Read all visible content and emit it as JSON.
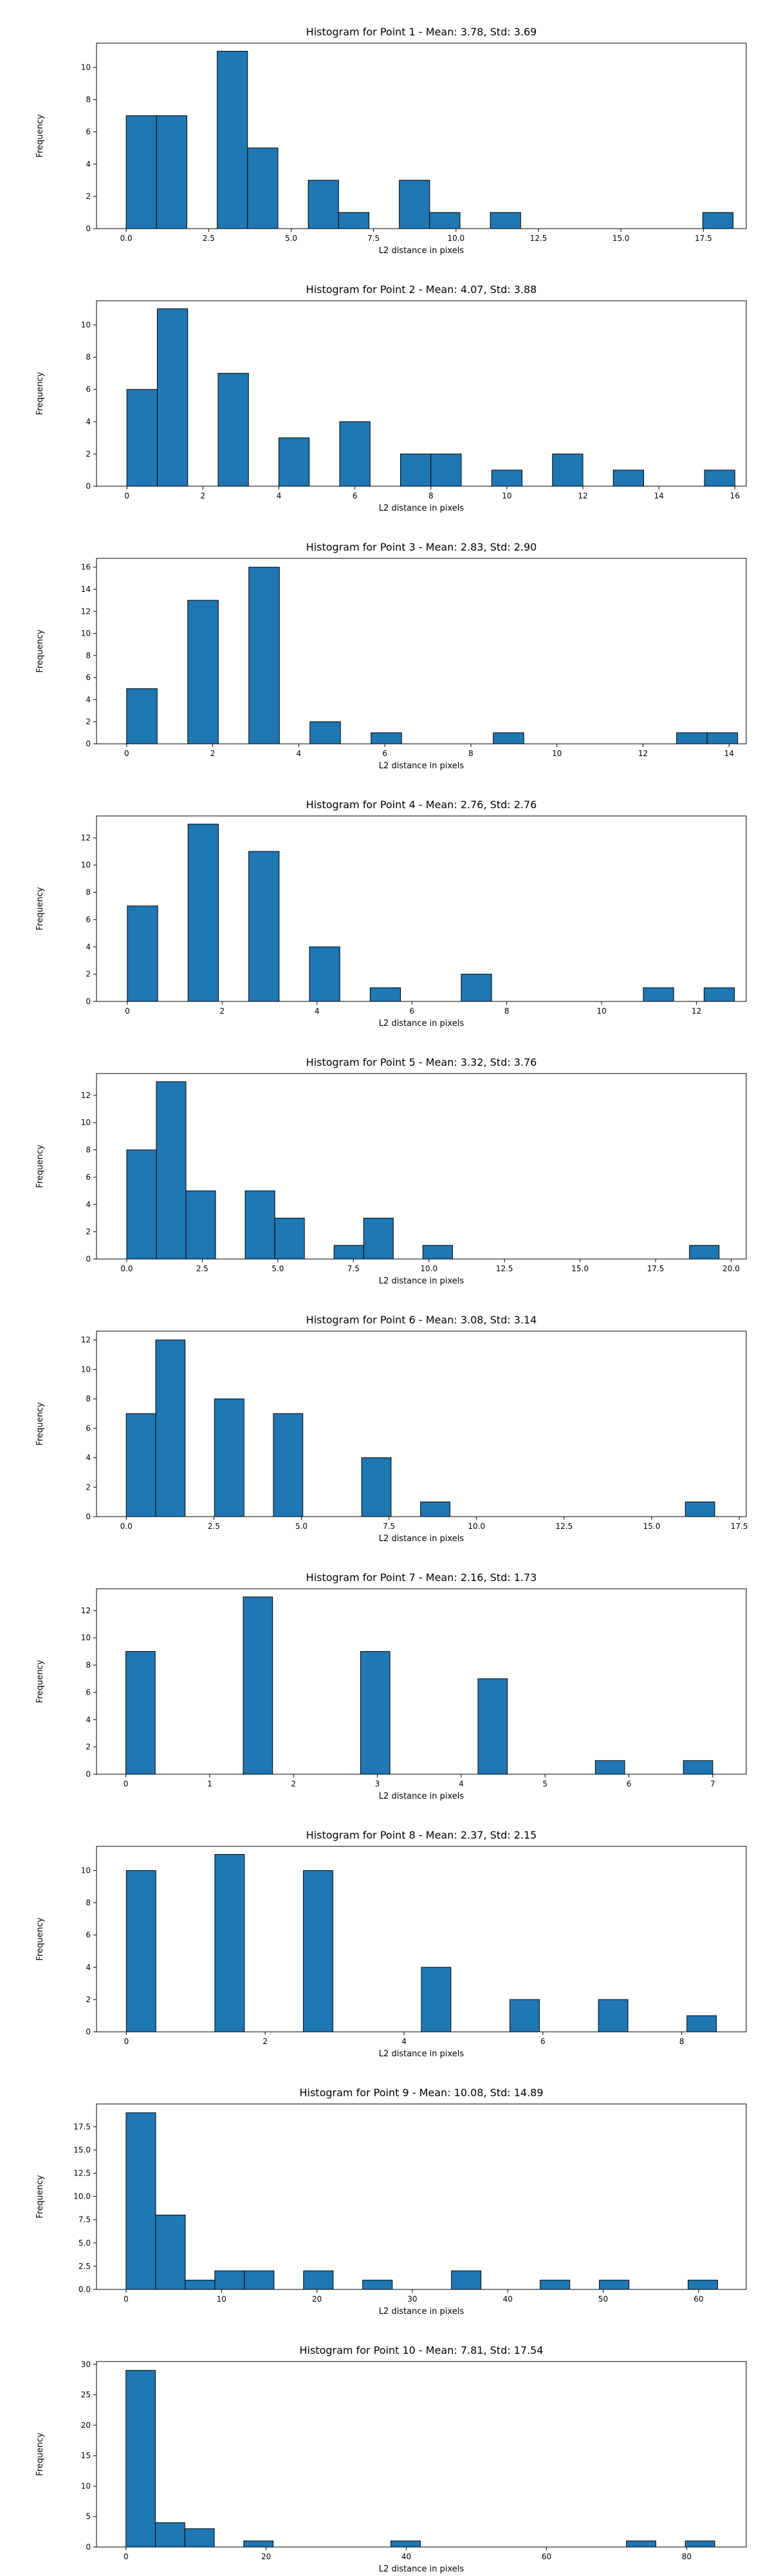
{
  "chart_data": [
    {
      "type": "bar",
      "title": "Histogram for Point 1 - Mean: 3.78, Std: 3.69",
      "xlabel": "L2 distance in pixels",
      "ylabel": "Frequency",
      "xlim": [
        -0.9,
        18.8
      ],
      "ylim": [
        0,
        11.5
      ],
      "bar_color": "#1f77b4",
      "edge_color": "#000000",
      "xticks": [
        0,
        2.5,
        5,
        7.5,
        10,
        12.5,
        15,
        17.5
      ],
      "xtick_labels": [
        "0.0",
        "2.5",
        "5.0",
        "7.5",
        "10.0",
        "12.5",
        "15.0",
        "17.5"
      ],
      "yticks": [
        0,
        2,
        4,
        6,
        8,
        10
      ],
      "bins": [
        {
          "x0": 0.0,
          "x1": 0.92,
          "count": 7
        },
        {
          "x0": 0.92,
          "x1": 1.84,
          "count": 7
        },
        {
          "x0": 2.76,
          "x1": 3.68,
          "count": 11
        },
        {
          "x0": 3.68,
          "x1": 4.6,
          "count": 5
        },
        {
          "x0": 5.52,
          "x1": 6.44,
          "count": 3
        },
        {
          "x0": 6.44,
          "x1": 7.36,
          "count": 1
        },
        {
          "x0": 8.28,
          "x1": 9.2,
          "count": 3
        },
        {
          "x0": 9.2,
          "x1": 10.12,
          "count": 1
        },
        {
          "x0": 11.04,
          "x1": 11.96,
          "count": 1
        },
        {
          "x0": 17.48,
          "x1": 18.4,
          "count": 1
        }
      ]
    },
    {
      "type": "bar",
      "title": "Histogram for Point 2 - Mean: 4.07, Std: 3.88",
      "xlabel": "L2 distance in pixels",
      "ylabel": "Frequency",
      "xlim": [
        -0.8,
        16.3
      ],
      "ylim": [
        0,
        11.5
      ],
      "bar_color": "#1f77b4",
      "edge_color": "#000000",
      "xticks": [
        0,
        2,
        4,
        6,
        8,
        10,
        12,
        14,
        16
      ],
      "xtick_labels": [
        "0",
        "2",
        "4",
        "6",
        "8",
        "10",
        "12",
        "14",
        "16"
      ],
      "yticks": [
        0,
        2,
        4,
        6,
        8,
        10
      ],
      "bins": [
        {
          "x0": 0.0,
          "x1": 0.8,
          "count": 6
        },
        {
          "x0": 0.8,
          "x1": 1.6,
          "count": 11
        },
        {
          "x0": 2.4,
          "x1": 3.2,
          "count": 7
        },
        {
          "x0": 4.0,
          "x1": 4.8,
          "count": 3
        },
        {
          "x0": 5.6,
          "x1": 6.4,
          "count": 4
        },
        {
          "x0": 7.2,
          "x1": 8.0,
          "count": 2
        },
        {
          "x0": 8.0,
          "x1": 8.8,
          "count": 2
        },
        {
          "x0": 9.6,
          "x1": 10.4,
          "count": 1
        },
        {
          "x0": 11.2,
          "x1": 12.0,
          "count": 2
        },
        {
          "x0": 12.8,
          "x1": 13.6,
          "count": 1
        },
        {
          "x0": 15.2,
          "x1": 16.0,
          "count": 1
        }
      ]
    },
    {
      "type": "bar",
      "title": "Histogram for Point 3 - Mean: 2.83, Std: 2.90",
      "xlabel": "L2 distance in pixels",
      "ylabel": "Frequency",
      "xlim": [
        -0.7,
        14.4
      ],
      "ylim": [
        0,
        16.8
      ],
      "bar_color": "#1f77b4",
      "edge_color": "#000000",
      "xticks": [
        0,
        2,
        4,
        6,
        8,
        10,
        12,
        14
      ],
      "xtick_labels": [
        "0",
        "2",
        "4",
        "6",
        "8",
        "10",
        "12",
        "14"
      ],
      "yticks": [
        0,
        2,
        4,
        6,
        8,
        10,
        12,
        14,
        16
      ],
      "bins": [
        {
          "x0": 0.0,
          "x1": 0.71,
          "count": 5
        },
        {
          "x0": 1.42,
          "x1": 2.13,
          "count": 13
        },
        {
          "x0": 2.84,
          "x1": 3.55,
          "count": 16
        },
        {
          "x0": 4.26,
          "x1": 4.97,
          "count": 2
        },
        {
          "x0": 5.68,
          "x1": 6.39,
          "count": 1
        },
        {
          "x0": 8.52,
          "x1": 9.23,
          "count": 1
        },
        {
          "x0": 12.78,
          "x1": 13.49,
          "count": 1
        },
        {
          "x0": 13.49,
          "x1": 14.2,
          "count": 1
        }
      ]
    },
    {
      "type": "bar",
      "title": "Histogram for Point 4 - Mean: 2.76, Std: 2.76",
      "xlabel": "L2 distance in pixels",
      "ylabel": "Frequency",
      "xlim": [
        -0.65,
        13.05
      ],
      "ylim": [
        0,
        13.6
      ],
      "bar_color": "#1f77b4",
      "edge_color": "#000000",
      "xticks": [
        0,
        2,
        4,
        6,
        8,
        10,
        12
      ],
      "xtick_labels": [
        "0",
        "2",
        "4",
        "6",
        "8",
        "10",
        "12"
      ],
      "yticks": [
        0,
        2,
        4,
        6,
        8,
        10,
        12
      ],
      "bins": [
        {
          "x0": 0.0,
          "x1": 0.64,
          "count": 7
        },
        {
          "x0": 1.28,
          "x1": 1.92,
          "count": 13
        },
        {
          "x0": 2.56,
          "x1": 3.2,
          "count": 11
        },
        {
          "x0": 3.84,
          "x1": 4.48,
          "count": 4
        },
        {
          "x0": 5.12,
          "x1": 5.76,
          "count": 1
        },
        {
          "x0": 7.04,
          "x1": 7.68,
          "count": 2
        },
        {
          "x0": 10.88,
          "x1": 11.52,
          "count": 1
        },
        {
          "x0": 12.16,
          "x1": 12.8,
          "count": 1
        }
      ]
    },
    {
      "type": "bar",
      "title": "Histogram for Point 5 - Mean: 3.32, Std: 3.76",
      "xlabel": "L2 distance in pixels",
      "ylabel": "Frequency",
      "xlim": [
        -1.0,
        20.5
      ],
      "ylim": [
        0,
        13.6
      ],
      "bar_color": "#1f77b4",
      "edge_color": "#000000",
      "xticks": [
        0,
        2.5,
        5,
        7.5,
        10,
        12.5,
        15,
        17.5,
        20
      ],
      "xtick_labels": [
        "0.0",
        "2.5",
        "5.0",
        "7.5",
        "10.0",
        "12.5",
        "15.0",
        "17.5",
        "20.0"
      ],
      "yticks": [
        0,
        2,
        4,
        6,
        8,
        10,
        12
      ],
      "bins": [
        {
          "x0": 0.0,
          "x1": 0.98,
          "count": 8
        },
        {
          "x0": 0.98,
          "x1": 1.96,
          "count": 13
        },
        {
          "x0": 1.96,
          "x1": 2.94,
          "count": 5
        },
        {
          "x0": 3.92,
          "x1": 4.9,
          "count": 5
        },
        {
          "x0": 4.9,
          "x1": 5.88,
          "count": 3
        },
        {
          "x0": 6.86,
          "x1": 7.84,
          "count": 1
        },
        {
          "x0": 7.84,
          "x1": 8.82,
          "count": 3
        },
        {
          "x0": 9.8,
          "x1": 10.78,
          "count": 1
        },
        {
          "x0": 18.62,
          "x1": 19.6,
          "count": 1
        }
      ]
    },
    {
      "type": "bar",
      "title": "Histogram for Point 6 - Mean: 3.08, Std: 3.14",
      "xlabel": "L2 distance in pixels",
      "ylabel": "Frequency",
      "xlim": [
        -0.85,
        17.7
      ],
      "ylim": [
        0,
        12.6
      ],
      "bar_color": "#1f77b4",
      "edge_color": "#000000",
      "xticks": [
        0,
        2.5,
        5,
        7.5,
        10,
        12.5,
        15,
        17.5
      ],
      "xtick_labels": [
        "0.0",
        "2.5",
        "5.0",
        "7.5",
        "10.0",
        "12.5",
        "15.0",
        "17.5"
      ],
      "yticks": [
        0,
        2,
        4,
        6,
        8,
        10,
        12
      ],
      "bins": [
        {
          "x0": 0.0,
          "x1": 0.84,
          "count": 7
        },
        {
          "x0": 0.84,
          "x1": 1.68,
          "count": 12
        },
        {
          "x0": 2.52,
          "x1": 3.36,
          "count": 8
        },
        {
          "x0": 4.2,
          "x1": 5.04,
          "count": 7
        },
        {
          "x0": 6.72,
          "x1": 7.56,
          "count": 4
        },
        {
          "x0": 8.4,
          "x1": 9.24,
          "count": 1
        },
        {
          "x0": 15.96,
          "x1": 16.8,
          "count": 1
        }
      ]
    },
    {
      "type": "bar",
      "title": "Histogram for Point 7 - Mean: 2.16, Std: 1.73",
      "xlabel": "L2 distance in pixels",
      "ylabel": "Frequency",
      "xlim": [
        -0.35,
        7.4
      ],
      "ylim": [
        0,
        13.6
      ],
      "bar_color": "#1f77b4",
      "edge_color": "#000000",
      "xticks": [
        0,
        1,
        2,
        3,
        4,
        5,
        6,
        7
      ],
      "xtick_labels": [
        "0",
        "1",
        "2",
        "3",
        "4",
        "5",
        "6",
        "7"
      ],
      "yticks": [
        0,
        2,
        4,
        6,
        8,
        10,
        12
      ],
      "bins": [
        {
          "x0": 0.0,
          "x1": 0.35,
          "count": 9
        },
        {
          "x0": 1.4,
          "x1": 1.75,
          "count": 13
        },
        {
          "x0": 2.8,
          "x1": 3.15,
          "count": 9
        },
        {
          "x0": 4.2,
          "x1": 4.55,
          "count": 7
        },
        {
          "x0": 5.6,
          "x1": 5.95,
          "count": 1
        },
        {
          "x0": 6.65,
          "x1": 7.0,
          "count": 1
        }
      ]
    },
    {
      "type": "bar",
      "title": "Histogram for Point 8 - Mean: 2.37, Std: 2.15",
      "xlabel": "L2 distance in pixels",
      "ylabel": "Frequency",
      "xlim": [
        -0.43,
        8.93
      ],
      "ylim": [
        0,
        11.5
      ],
      "bar_color": "#1f77b4",
      "edge_color": "#000000",
      "xticks": [
        0,
        2,
        4,
        6,
        8
      ],
      "xtick_labels": [
        "0",
        "2",
        "4",
        "6",
        "8"
      ],
      "yticks": [
        0,
        2,
        4,
        6,
        8,
        10
      ],
      "bins": [
        {
          "x0": 0.0,
          "x1": 0.425,
          "count": 10
        },
        {
          "x0": 1.275,
          "x1": 1.7,
          "count": 11
        },
        {
          "x0": 2.55,
          "x1": 2.975,
          "count": 10
        },
        {
          "x0": 4.25,
          "x1": 4.675,
          "count": 4
        },
        {
          "x0": 5.525,
          "x1": 5.95,
          "count": 2
        },
        {
          "x0": 6.8,
          "x1": 7.225,
          "count": 2
        },
        {
          "x0": 8.075,
          "x1": 8.5,
          "count": 1
        }
      ]
    },
    {
      "type": "bar",
      "title": "Histogram for Point 9 - Mean: 10.08, Std: 14.89",
      "xlabel": "L2 distance in pixels",
      "ylabel": "Frequency",
      "xlim": [
        -3.1,
        65.0
      ],
      "ylim": [
        0,
        19.95
      ],
      "bar_color": "#1f77b4",
      "edge_color": "#000000",
      "xticks": [
        0,
        10,
        20,
        30,
        40,
        50,
        60
      ],
      "xtick_labels": [
        "0",
        "10",
        "20",
        "30",
        "40",
        "50",
        "60"
      ],
      "yticks": [
        0,
        2.5,
        5,
        7.5,
        10,
        12.5,
        15,
        17.5
      ],
      "ytick_labels": [
        "0.0",
        "2.5",
        "5.0",
        "7.5",
        "10.0",
        "12.5",
        "15.0",
        "17.5"
      ],
      "bins": [
        {
          "x0": 0.0,
          "x1": 3.1,
          "count": 19
        },
        {
          "x0": 3.1,
          "x1": 6.2,
          "count": 8
        },
        {
          "x0": 6.2,
          "x1": 9.3,
          "count": 1
        },
        {
          "x0": 9.3,
          "x1": 12.4,
          "count": 2
        },
        {
          "x0": 12.4,
          "x1": 15.5,
          "count": 2
        },
        {
          "x0": 18.6,
          "x1": 21.7,
          "count": 2
        },
        {
          "x0": 24.8,
          "x1": 27.9,
          "count": 1
        },
        {
          "x0": 34.1,
          "x1": 37.2,
          "count": 2
        },
        {
          "x0": 43.4,
          "x1": 46.5,
          "count": 1
        },
        {
          "x0": 49.6,
          "x1": 52.7,
          "count": 1
        },
        {
          "x0": 58.9,
          "x1": 62.0,
          "count": 1
        }
      ]
    },
    {
      "type": "bar",
      "title": "Histogram for Point 10 - Mean: 7.81, Std: 17.54",
      "xlabel": "L2 distance in pixels",
      "ylabel": "Frequency",
      "xlim": [
        -4.2,
        88.5
      ],
      "ylim": [
        0,
        30.45
      ],
      "bar_color": "#1f77b4",
      "edge_color": "#000000",
      "xticks": [
        0,
        20,
        40,
        60,
        80
      ],
      "xtick_labels": [
        "0",
        "20",
        "40",
        "60",
        "80"
      ],
      "yticks": [
        0,
        5,
        10,
        15,
        20,
        25,
        30
      ],
      "bins": [
        {
          "x0": 0.0,
          "x1": 4.2,
          "count": 29
        },
        {
          "x0": 4.2,
          "x1": 8.4,
          "count": 4
        },
        {
          "x0": 8.4,
          "x1": 12.6,
          "count": 3
        },
        {
          "x0": 16.8,
          "x1": 21.0,
          "count": 1
        },
        {
          "x0": 37.8,
          "x1": 42.0,
          "count": 1
        },
        {
          "x0": 71.4,
          "x1": 75.6,
          "count": 1
        },
        {
          "x0": 79.8,
          "x1": 84.0,
          "count": 1
        }
      ]
    }
  ]
}
